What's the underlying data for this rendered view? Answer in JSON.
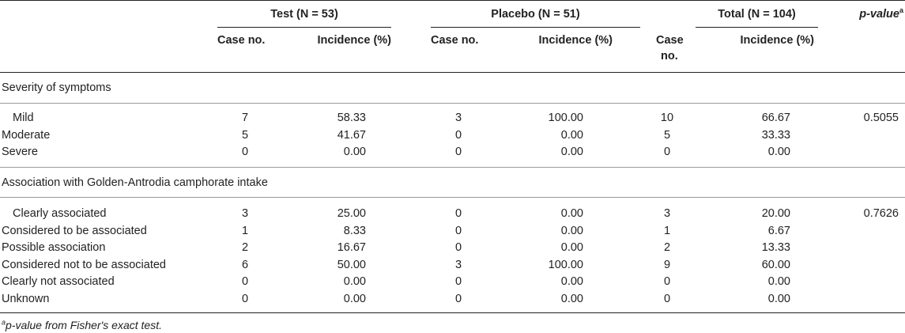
{
  "table": {
    "groups": {
      "test": "Test (N = 53)",
      "placebo": "Placebo (N = 51)",
      "total": "Total (N = 104)",
      "pvalue": "p-value",
      "pvalue_sup": "a"
    },
    "subheaders": {
      "case_no": "Case no.",
      "incidence": "Incidence (%)",
      "case": "Case",
      "no": "no."
    },
    "sections": [
      {
        "title": "Severity of symptoms",
        "p_value": "0.5055",
        "rows": [
          {
            "label": "Mild",
            "test_case": "7",
            "test_inc": "58.33",
            "placebo_case": "3",
            "placebo_inc": "100.00",
            "total_case": "10",
            "total_inc": "66.67"
          },
          {
            "label": "Moderate",
            "test_case": "5",
            "test_inc": "41.67",
            "placebo_case": "0",
            "placebo_inc": "0.00",
            "total_case": "5",
            "total_inc": "33.33"
          },
          {
            "label": "Severe",
            "test_case": "0",
            "test_inc": "0.00",
            "placebo_case": "0",
            "placebo_inc": "0.00",
            "total_case": "0",
            "total_inc": "0.00"
          }
        ]
      },
      {
        "title": "Association with Golden-Antrodia camphorate intake",
        "p_value": "0.7626",
        "rows": [
          {
            "label": "Clearly associated",
            "test_case": "3",
            "test_inc": "25.00",
            "placebo_case": "0",
            "placebo_inc": "0.00",
            "total_case": "3",
            "total_inc": "20.00"
          },
          {
            "label": "Considered to be associated",
            "test_case": "1",
            "test_inc": "8.33",
            "placebo_case": "0",
            "placebo_inc": "0.00",
            "total_case": "1",
            "total_inc": "6.67"
          },
          {
            "label": "Possible association",
            "test_case": "2",
            "test_inc": "16.67",
            "placebo_case": "0",
            "placebo_inc": "0.00",
            "total_case": "2",
            "total_inc": "13.33"
          },
          {
            "label": "Considered not to be associated",
            "test_case": "6",
            "test_inc": "50.00",
            "placebo_case": "3",
            "placebo_inc": "100.00",
            "total_case": "9",
            "total_inc": "60.00"
          },
          {
            "label": "Clearly not associated",
            "test_case": "0",
            "test_inc": "0.00",
            "placebo_case": "0",
            "placebo_inc": "0.00",
            "total_case": "0",
            "total_inc": "0.00"
          },
          {
            "label": "Unknown",
            "test_case": "0",
            "test_inc": "0.00",
            "placebo_case": "0",
            "placebo_inc": "0.00",
            "total_case": "0",
            "total_inc": "0.00"
          }
        ]
      }
    ],
    "footnote": {
      "sup": "a",
      "text": "p-value from Fisher's exact test."
    }
  }
}
